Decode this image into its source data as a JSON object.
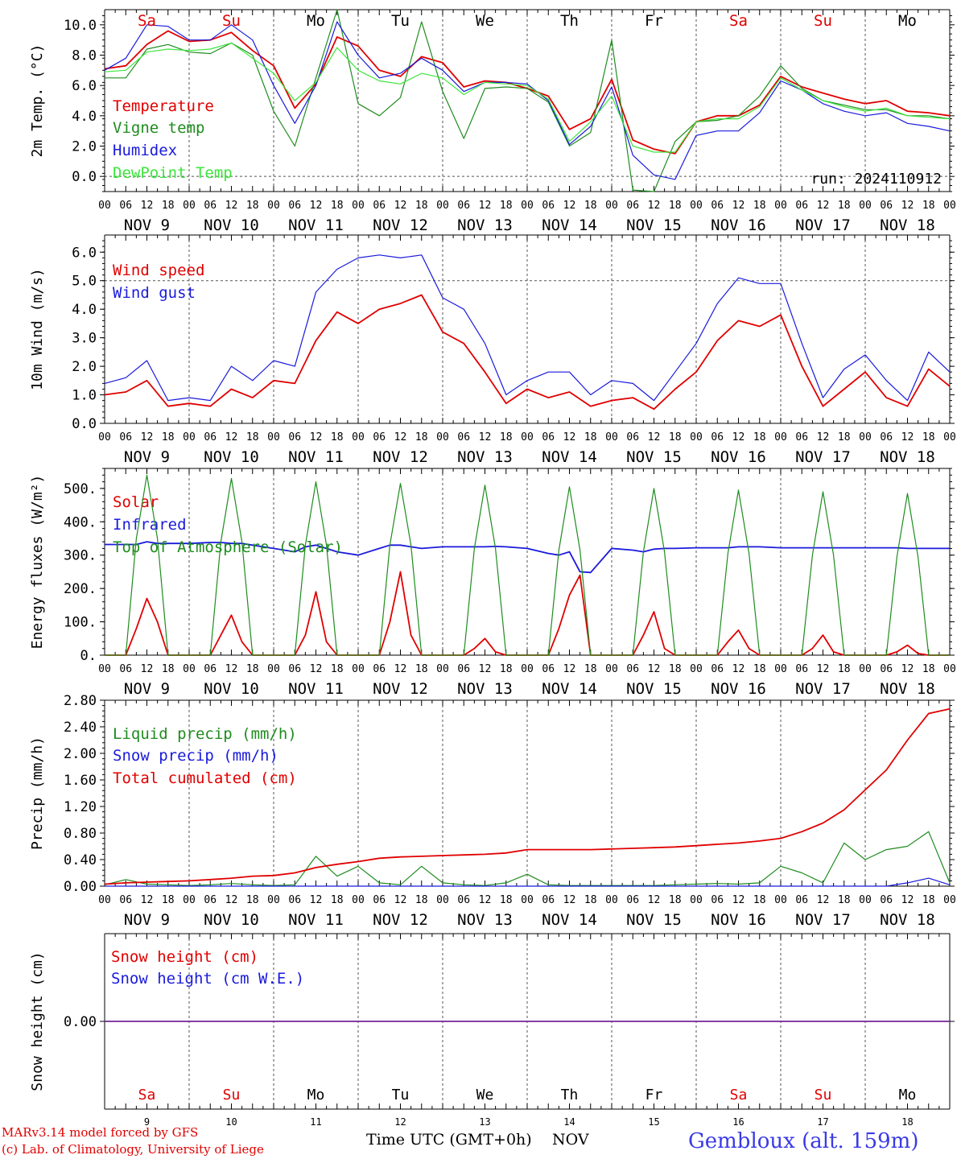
{
  "colors": {
    "red": "#e00000",
    "green": "#1e8c1e",
    "blue": "#1a1adc",
    "lightgreen": "#3ce63c",
    "purple": "#7a2a9c",
    "axis": "#000000",
    "dash": "#555555",
    "location": "#3a3ae6"
  },
  "days": [
    {
      "abbr": "Sa",
      "weekend": true,
      "date": "NOV  9",
      "num": "9"
    },
    {
      "abbr": "Su",
      "weekend": true,
      "date": "NOV 10",
      "num": "10"
    },
    {
      "abbr": "Mo",
      "weekend": false,
      "date": "NOV 11",
      "num": "11"
    },
    {
      "abbr": "Tu",
      "weekend": false,
      "date": "NOV 12",
      "num": "12"
    },
    {
      "abbr": "We",
      "weekend": false,
      "date": "NOV 13",
      "num": "13"
    },
    {
      "abbr": "Th",
      "weekend": false,
      "date": "NOV 14",
      "num": "14"
    },
    {
      "abbr": "Fr",
      "weekend": false,
      "date": "NOV 15",
      "num": "15"
    },
    {
      "abbr": "Sa",
      "weekend": true,
      "date": "NOV 16",
      "num": "16"
    },
    {
      "abbr": "Su",
      "weekend": true,
      "date": "NOV 17",
      "num": "17"
    },
    {
      "abbr": "Mo",
      "weekend": false,
      "date": "NOV 18",
      "num": "18"
    }
  ],
  "hour_labels": [
    "00",
    "06",
    "12",
    "18"
  ],
  "footer": {
    "credit1": "MARv3.14 model forced by GFS",
    "credit2": "(c) Lab. of Climatology, University of Liege",
    "xlabel": "Time UTC (GMT+0h)",
    "xunit": "NOV",
    "location": "Gembloux (alt. 159m)"
  },
  "chart_data": [
    {
      "type": "line",
      "ylabel": "2m Temp. (°C)",
      "ylim": [
        -1.0,
        11.0
      ],
      "yticks": [
        0,
        2,
        4,
        6,
        8,
        10
      ],
      "ytick_labels": [
        "0.0",
        "2.0",
        "4.0",
        "6.0",
        "8.0",
        "10.0"
      ],
      "dashed_y": [
        0
      ],
      "annotation": "run: 2024110912",
      "x_hours": [
        0,
        6,
        12,
        18,
        24,
        30,
        36,
        42,
        48,
        54,
        60,
        66,
        72,
        78,
        84,
        90,
        96,
        102,
        108,
        114,
        120,
        126,
        132,
        138,
        144,
        150,
        156,
        162,
        168,
        174,
        180,
        186,
        192,
        198,
        204,
        210,
        216,
        222,
        228,
        234,
        240
      ],
      "series": [
        {
          "name": "Temperature",
          "color": "red",
          "values": [
            7.1,
            7.3,
            8.7,
            9.6,
            8.9,
            9.0,
            9.5,
            8.3,
            7.3,
            4.5,
            6.1,
            9.2,
            8.6,
            7.0,
            6.6,
            7.9,
            7.5,
            5.9,
            6.3,
            6.2,
            5.8,
            5.3,
            3.1,
            3.8,
            6.4,
            2.4,
            1.8,
            1.5,
            3.6,
            4.0,
            4.0,
            4.7,
            6.6,
            5.9,
            5.5,
            5.1,
            4.8,
            5.0,
            4.3,
            4.2,
            4.0
          ]
        },
        {
          "name": "Vigne temp",
          "color": "green",
          "values": [
            6.5,
            6.5,
            8.4,
            8.7,
            8.2,
            8.1,
            8.8,
            8.0,
            4.3,
            2.0,
            6.5,
            11.0,
            4.8,
            4.0,
            5.2,
            10.2,
            5.6,
            2.5,
            5.8,
            5.9,
            5.8,
            4.9,
            2.0,
            2.9,
            9.0,
            -0.9,
            -1.0,
            2.3,
            3.6,
            3.7,
            4.0,
            5.3,
            7.3,
            5.8,
            5.0,
            4.7,
            4.4,
            4.4,
            4.0,
            4.0,
            3.8
          ]
        },
        {
          "name": "Humidex",
          "color": "blue",
          "values": [
            7.0,
            7.8,
            10.0,
            9.9,
            9.0,
            9.0,
            10.0,
            9.0,
            6.0,
            3.5,
            6.0,
            10.2,
            8.0,
            6.5,
            6.8,
            7.8,
            7.0,
            5.6,
            6.2,
            6.2,
            6.1,
            5.0,
            2.1,
            3.3,
            5.9,
            1.4,
            0.1,
            -0.2,
            2.7,
            3.0,
            3.0,
            4.2,
            6.3,
            5.7,
            4.8,
            4.3,
            4.0,
            4.2,
            3.5,
            3.3,
            3.0
          ]
        },
        {
          "name": "DewPoint Temp",
          "color": "lightgreen",
          "values": [
            6.9,
            7.0,
            8.2,
            8.4,
            8.3,
            8.4,
            8.8,
            7.8,
            6.8,
            5.0,
            6.2,
            8.5,
            7.0,
            6.3,
            6.1,
            6.8,
            6.5,
            5.4,
            6.2,
            6.1,
            6.0,
            5.1,
            2.3,
            3.6,
            5.3,
            2.0,
            1.6,
            1.6,
            3.6,
            3.8,
            3.8,
            4.6,
            6.5,
            5.7,
            5.0,
            4.6,
            4.3,
            4.5,
            4.0,
            3.9,
            3.8
          ]
        }
      ]
    },
    {
      "type": "line",
      "ylabel": "10m Wind (m/s)",
      "ylim": [
        0,
        6.6
      ],
      "yticks": [
        0,
        1,
        2,
        3,
        4,
        5,
        6
      ],
      "ytick_labels": [
        "0.0",
        "1.0",
        "2.0",
        "3.0",
        "4.0",
        "5.0",
        "6.0"
      ],
      "dashed_y": [
        5
      ],
      "x_hours": [
        0,
        6,
        12,
        18,
        24,
        30,
        36,
        42,
        48,
        54,
        60,
        66,
        72,
        78,
        84,
        90,
        96,
        102,
        108,
        114,
        120,
        126,
        132,
        138,
        144,
        150,
        156,
        162,
        168,
        174,
        180,
        186,
        192,
        198,
        204,
        210,
        216,
        222,
        228,
        234,
        240
      ],
      "series": [
        {
          "name": "Wind speed",
          "color": "red",
          "values": [
            1.0,
            1.1,
            1.5,
            0.6,
            0.7,
            0.6,
            1.2,
            0.9,
            1.5,
            1.4,
            2.9,
            3.9,
            3.5,
            4.0,
            4.2,
            4.5,
            3.2,
            2.8,
            1.8,
            0.7,
            1.2,
            0.9,
            1.1,
            0.6,
            0.8,
            0.9,
            0.5,
            1.2,
            1.8,
            2.9,
            3.6,
            3.4,
            3.8,
            2.0,
            0.6,
            1.2,
            1.8,
            0.9,
            0.6,
            1.9,
            1.3
          ]
        },
        {
          "name": "Wind gust",
          "color": "blue",
          "values": [
            1.4,
            1.6,
            2.2,
            0.8,
            0.9,
            0.8,
            2.0,
            1.5,
            2.2,
            2.0,
            4.6,
            5.4,
            5.8,
            5.9,
            5.8,
            5.9,
            4.4,
            4.0,
            2.8,
            1.0,
            1.5,
            1.8,
            1.8,
            1.0,
            1.5,
            1.4,
            0.8,
            1.8,
            2.8,
            4.2,
            5.1,
            4.9,
            4.9,
            2.8,
            0.9,
            1.9,
            2.4,
            1.5,
            0.8,
            2.5,
            1.8
          ]
        }
      ]
    },
    {
      "type": "line",
      "ylabel": "Energy fluxes (W/m²)",
      "ylim": [
        0,
        560
      ],
      "yticks": [
        0,
        100,
        200,
        300,
        400,
        500
      ],
      "ytick_labels": [
        "0.",
        "100.",
        "200.",
        "300.",
        "400.",
        "500."
      ],
      "dashed_y": [],
      "x_hours": [
        0,
        6,
        9,
        12,
        15,
        18,
        24,
        30,
        33,
        36,
        39,
        42,
        48,
        54,
        57,
        60,
        63,
        66,
        72,
        78,
        81,
        84,
        87,
        90,
        96,
        102,
        105,
        108,
        111,
        114,
        120,
        126,
        129,
        132,
        135,
        138,
        144,
        150,
        153,
        156,
        159,
        162,
        168,
        174,
        177,
        180,
        183,
        186,
        192,
        198,
        201,
        204,
        207,
        210,
        216,
        222,
        225,
        228,
        231,
        234,
        240
      ],
      "series": [
        {
          "name": "Solar",
          "color": "red",
          "values": [
            0,
            0,
            80,
            170,
            100,
            0,
            0,
            0,
            60,
            120,
            40,
            0,
            0,
            0,
            60,
            190,
            40,
            0,
            0,
            0,
            100,
            250,
            60,
            0,
            0,
            0,
            20,
            50,
            10,
            0,
            0,
            0,
            80,
            180,
            240,
            0,
            0,
            0,
            60,
            130,
            20,
            0,
            0,
            0,
            40,
            75,
            20,
            0,
            0,
            0,
            20,
            60,
            10,
            0,
            0,
            0,
            10,
            30,
            5,
            0,
            0
          ]
        },
        {
          "name": "Infrared",
          "color": "blue",
          "values": [
            332,
            332,
            332,
            340,
            335,
            335,
            335,
            338,
            338,
            335,
            335,
            330,
            320,
            310,
            325,
            330,
            320,
            310,
            300,
            320,
            330,
            330,
            325,
            320,
            325,
            325,
            325,
            325,
            326,
            325,
            320,
            305,
            300,
            310,
            250,
            248,
            320,
            315,
            310,
            318,
            320,
            320,
            322,
            322,
            322,
            325,
            325,
            325,
            322,
            322,
            322,
            322,
            322,
            322,
            322,
            322,
            322,
            320,
            320,
            320,
            320
          ]
        },
        {
          "name": "Top of Atmosphere (Solar)",
          "color": "green",
          "values": [
            0,
            0,
            350,
            540,
            350,
            0,
            0,
            0,
            340,
            530,
            340,
            0,
            0,
            0,
            330,
            520,
            330,
            0,
            0,
            0,
            330,
            515,
            330,
            0,
            0,
            0,
            320,
            510,
            320,
            0,
            0,
            0,
            315,
            505,
            315,
            0,
            0,
            0,
            310,
            500,
            310,
            0,
            0,
            0,
            305,
            495,
            305,
            0,
            0,
            0,
            300,
            490,
            300,
            0,
            0,
            0,
            295,
            485,
            295,
            0,
            0
          ]
        }
      ]
    },
    {
      "type": "line",
      "ylabel": "Precip (mm/h)",
      "ylim": [
        0,
        2.8
      ],
      "yticks": [
        0,
        0.4,
        0.8,
        1.2,
        1.6,
        2.0,
        2.4,
        2.8
      ],
      "ytick_labels": [
        "0.00",
        "0.40",
        "0.80",
        "1.20",
        "1.60",
        "2.00",
        "2.40",
        "2.80"
      ],
      "dashed_y": [],
      "x_hours": [
        0,
        6,
        12,
        18,
        24,
        30,
        36,
        42,
        48,
        54,
        60,
        66,
        72,
        78,
        84,
        90,
        96,
        102,
        108,
        114,
        120,
        126,
        132,
        138,
        144,
        150,
        156,
        162,
        168,
        174,
        180,
        186,
        192,
        198,
        204,
        210,
        216,
        222,
        228,
        234,
        240
      ],
      "series": [
        {
          "name": "Liquid precip (mm/h)",
          "color": "green",
          "values": [
            0.02,
            0.1,
            0.03,
            0.02,
            0.01,
            0.02,
            0.04,
            0.02,
            0.01,
            0.02,
            0.45,
            0.15,
            0.3,
            0.05,
            0.02,
            0.3,
            0.05,
            0.02,
            0.01,
            0.05,
            0.18,
            0.02,
            0.01,
            0.01,
            0.01,
            0.01,
            0.01,
            0.02,
            0.03,
            0.04,
            0.03,
            0.05,
            0.3,
            0.2,
            0.05,
            0.65,
            0.4,
            0.55,
            0.6,
            0.82,
            0.05
          ]
        },
        {
          "name": "Snow precip (mm/h)",
          "color": "blue",
          "values": [
            0,
            0,
            0,
            0,
            0,
            0,
            0,
            0,
            0,
            0,
            0,
            0,
            0,
            0,
            0,
            0,
            0,
            0,
            0,
            0,
            0,
            0,
            0,
            0,
            0,
            0,
            0,
            0,
            0,
            0,
            0,
            0,
            0,
            0,
            0,
            0,
            0,
            0,
            0.05,
            0.12,
            0.02
          ]
        },
        {
          "name": "Total cumulated (cm)",
          "color": "red",
          "values": [
            0.03,
            0.05,
            0.06,
            0.07,
            0.08,
            0.1,
            0.12,
            0.15,
            0.16,
            0.2,
            0.28,
            0.33,
            0.37,
            0.42,
            0.44,
            0.45,
            0.46,
            0.47,
            0.48,
            0.5,
            0.55,
            0.55,
            0.55,
            0.55,
            0.56,
            0.57,
            0.58,
            0.59,
            0.61,
            0.63,
            0.65,
            0.68,
            0.72,
            0.82,
            0.95,
            1.15,
            1.45,
            1.75,
            2.2,
            2.6,
            2.67
          ]
        }
      ]
    },
    {
      "type": "line",
      "ylabel": "Snow height (cm)",
      "ylim": [
        -1,
        1
      ],
      "yticks": [
        0
      ],
      "ytick_labels": [
        "0.00"
      ],
      "dashed_y": [],
      "x_hours": [
        0,
        240
      ],
      "series": [
        {
          "name": "Snow height (cm)",
          "color": "red",
          "values": [
            0,
            0
          ]
        },
        {
          "name": "Snow height (cm W.E.)",
          "color": "blue",
          "values": [
            0,
            0
          ]
        }
      ]
    }
  ]
}
